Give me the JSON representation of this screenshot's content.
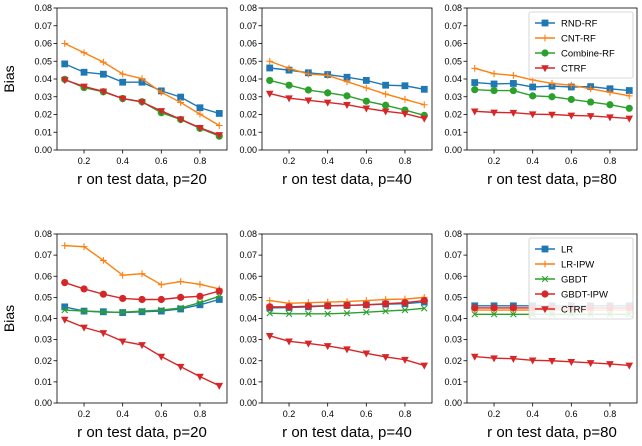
{
  "figure": {
    "colors": {
      "blue": "#1f77b4",
      "orange": "#ff7f0e",
      "green": "#2ca02c",
      "red": "#d62728",
      "axis": "#000000",
      "background": "#ffffff"
    }
  },
  "chart_data": [
    {
      "type": "line",
      "x": [
        0.1,
        0.2,
        0.3,
        0.4,
        0.5,
        0.6,
        0.7,
        0.8,
        0.9
      ],
      "xlabel": "r on test data, p=20",
      "ylabel": "Bias",
      "ylim": [
        0,
        0.08
      ],
      "xticks": [
        "0.2",
        "0.4",
        "0.6",
        "0.8"
      ],
      "yticks": [
        "0.00",
        "0.01",
        "0.02",
        "0.03",
        "0.04",
        "0.05",
        "0.06",
        "0.07",
        "0.08"
      ],
      "series": [
        {
          "name": "RND-RF",
          "color": "#1f77b4",
          "marker": "square",
          "values": [
            0.0485,
            0.0438,
            0.0427,
            0.0382,
            0.0382,
            0.0333,
            0.0298,
            0.0238,
            0.0206
          ]
        },
        {
          "name": "CNT-RF",
          "color": "#ff7f0e",
          "marker": "plus",
          "values": [
            0.06,
            0.0548,
            0.0495,
            0.0428,
            0.0402,
            0.0325,
            0.0268,
            0.0202,
            0.0138
          ]
        },
        {
          "name": "Combine-RF",
          "color": "#2ca02c",
          "marker": "circle",
          "values": [
            0.0398,
            0.0352,
            0.0328,
            0.029,
            0.0272,
            0.021,
            0.0172,
            0.0122,
            0.0078
          ]
        },
        {
          "name": "CTRF",
          "color": "#d62728",
          "marker": "triangle",
          "values": [
            0.0395,
            0.0358,
            0.033,
            0.029,
            0.027,
            0.022,
            0.0173,
            0.0125,
            0.0085
          ]
        }
      ]
    },
    {
      "type": "line",
      "x": [
        0.1,
        0.2,
        0.3,
        0.4,
        0.5,
        0.6,
        0.7,
        0.8,
        0.9
      ],
      "xlabel": "r on test data, p=40",
      "ylim": [
        0,
        0.08
      ],
      "xticks": [
        "0.2",
        "0.4",
        "0.6",
        "0.8"
      ],
      "yticks": [
        "0.00",
        "0.01",
        "0.02",
        "0.03",
        "0.04",
        "0.05",
        "0.06",
        "0.07",
        "0.08"
      ],
      "series": [
        {
          "name": "RND-RF",
          "color": "#1f77b4",
          "marker": "square",
          "values": [
            0.0462,
            0.045,
            0.0435,
            0.0425,
            0.041,
            0.0392,
            0.0365,
            0.0362,
            0.0342
          ]
        },
        {
          "name": "CNT-RF",
          "color": "#ff7f0e",
          "marker": "plus",
          "values": [
            0.05,
            0.046,
            0.0428,
            0.042,
            0.0385,
            0.035,
            0.0315,
            0.0285,
            0.0255
          ]
        },
        {
          "name": "Combine-RF",
          "color": "#2ca02c",
          "marker": "circle",
          "values": [
            0.0392,
            0.0365,
            0.0338,
            0.0322,
            0.0305,
            0.0275,
            0.0252,
            0.0225,
            0.0195
          ]
        },
        {
          "name": "CTRF",
          "color": "#d62728",
          "marker": "triangle",
          "values": [
            0.0318,
            0.0292,
            0.028,
            0.0268,
            0.0255,
            0.0235,
            0.0218,
            0.0205,
            0.0178
          ]
        }
      ]
    },
    {
      "type": "line",
      "x": [
        0.1,
        0.2,
        0.3,
        0.4,
        0.5,
        0.6,
        0.7,
        0.8,
        0.9
      ],
      "xlabel": "r on test data, p=80",
      "ylim": [
        0,
        0.08
      ],
      "xticks": [
        "0.2",
        "0.4",
        "0.6",
        "0.8"
      ],
      "yticks": [
        "0.00",
        "0.01",
        "0.02",
        "0.03",
        "0.04",
        "0.05",
        "0.06",
        "0.07",
        "0.08"
      ],
      "legend": {
        "position": "top-right",
        "entries": [
          "RND-RF",
          "CNT-RF",
          "Combine-RF",
          "CTRF"
        ]
      },
      "series": [
        {
          "name": "RND-RF",
          "color": "#1f77b4",
          "marker": "square",
          "values": [
            0.038,
            0.0372,
            0.0375,
            0.0355,
            0.036,
            0.0355,
            0.0357,
            0.0345,
            0.0335
          ]
        },
        {
          "name": "CNT-RF",
          "color": "#ff7f0e",
          "marker": "plus",
          "values": [
            0.046,
            0.043,
            0.042,
            0.0395,
            0.0375,
            0.0365,
            0.0345,
            0.0325,
            0.0305
          ]
        },
        {
          "name": "Combine-RF",
          "color": "#2ca02c",
          "marker": "circle",
          "values": [
            0.034,
            0.0335,
            0.0335,
            0.0305,
            0.03,
            0.0285,
            0.027,
            0.0255,
            0.0235
          ]
        },
        {
          "name": "CTRF",
          "color": "#d62728",
          "marker": "triangle",
          "values": [
            0.0218,
            0.0212,
            0.021,
            0.0202,
            0.02,
            0.0195,
            0.0192,
            0.0185,
            0.0178
          ]
        }
      ]
    },
    {
      "type": "line",
      "x": [
        0.1,
        0.2,
        0.3,
        0.4,
        0.5,
        0.6,
        0.7,
        0.8,
        0.9
      ],
      "xlabel": "r on test data, p=20",
      "ylabel": "Bias",
      "ylim": [
        0,
        0.08
      ],
      "xticks": [
        "0.2",
        "0.4",
        "0.6",
        "0.8"
      ],
      "yticks": [
        "0.00",
        "0.01",
        "0.02",
        "0.03",
        "0.04",
        "0.05",
        "0.06",
        "0.07",
        "0.08"
      ],
      "series": [
        {
          "name": "LR",
          "color": "#1f77b4",
          "marker": "square",
          "values": [
            0.0455,
            0.0435,
            0.0432,
            0.0428,
            0.0432,
            0.0435,
            0.0445,
            0.0465,
            0.049
          ]
        },
        {
          "name": "LR-IPW",
          "color": "#ff7f0e",
          "marker": "plus",
          "values": [
            0.0745,
            0.074,
            0.0675,
            0.0605,
            0.0612,
            0.056,
            0.0575,
            0.0562,
            0.054
          ]
        },
        {
          "name": "GBDT",
          "color": "#2ca02c",
          "marker": "x",
          "values": [
            0.044,
            0.0435,
            0.043,
            0.043,
            0.0435,
            0.044,
            0.045,
            0.0475,
            0.0505
          ]
        },
        {
          "name": "GBDT-IPW",
          "color": "#d62728",
          "marker": "circle",
          "values": [
            0.057,
            0.054,
            0.0515,
            0.0495,
            0.049,
            0.049,
            0.05,
            0.0505,
            0.053
          ]
        },
        {
          "name": "CTRF",
          "color": "#d62728",
          "marker": "triangle",
          "values": [
            0.0395,
            0.0358,
            0.0332,
            0.0292,
            0.0275,
            0.022,
            0.0172,
            0.0125,
            0.0082
          ]
        }
      ]
    },
    {
      "type": "line",
      "x": [
        0.1,
        0.2,
        0.3,
        0.4,
        0.5,
        0.6,
        0.7,
        0.8,
        0.9
      ],
      "xlabel": "r on test data, p=40",
      "ylim": [
        0,
        0.08
      ],
      "xticks": [
        "0.2",
        "0.4",
        "0.6",
        "0.8"
      ],
      "yticks": [
        "0.00",
        "0.01",
        "0.02",
        "0.03",
        "0.04",
        "0.05",
        "0.06",
        "0.07",
        "0.08"
      ],
      "series": [
        {
          "name": "LR",
          "color": "#1f77b4",
          "marker": "square",
          "values": [
            0.045,
            0.0452,
            0.0455,
            0.046,
            0.0462,
            0.0465,
            0.0468,
            0.047,
            0.0478
          ]
        },
        {
          "name": "LR-IPW",
          "color": "#ff7f0e",
          "marker": "plus",
          "values": [
            0.0485,
            0.0472,
            0.0475,
            0.0478,
            0.048,
            0.0485,
            0.049,
            0.0492,
            0.05
          ]
        },
        {
          "name": "GBDT",
          "color": "#2ca02c",
          "marker": "x",
          "values": [
            0.0425,
            0.0422,
            0.0422,
            0.0422,
            0.0425,
            0.043,
            0.0435,
            0.044,
            0.0448
          ]
        },
        {
          "name": "GBDT-IPW",
          "color": "#d62728",
          "marker": "circle",
          "values": [
            0.0455,
            0.0455,
            0.0458,
            0.046,
            0.0462,
            0.0465,
            0.047,
            0.0475,
            0.0485
          ]
        },
        {
          "name": "CTRF",
          "color": "#d62728",
          "marker": "triangle",
          "values": [
            0.0318,
            0.0292,
            0.0282,
            0.027,
            0.0255,
            0.0235,
            0.0218,
            0.0205,
            0.0178
          ]
        }
      ]
    },
    {
      "type": "line",
      "x": [
        0.1,
        0.2,
        0.3,
        0.4,
        0.5,
        0.6,
        0.7,
        0.8,
        0.9
      ],
      "xlabel": "r on test data, p=80",
      "ylim": [
        0,
        0.08
      ],
      "xticks": [
        "0.2",
        "0.4",
        "0.6",
        "0.8"
      ],
      "yticks": [
        "0.00",
        "0.01",
        "0.02",
        "0.03",
        "0.04",
        "0.05",
        "0.06",
        "0.07",
        "0.08"
      ],
      "legend": {
        "position": "top-right",
        "entries": [
          "LR",
          "LR-IPW",
          "GBDT",
          "GBDT-IPW",
          "CTRF"
        ]
      },
      "series": [
        {
          "name": "LR",
          "color": "#1f77b4",
          "marker": "square",
          "values": [
            0.046,
            0.046,
            0.046,
            0.046,
            0.046,
            0.046,
            0.046,
            0.046,
            0.046
          ]
        },
        {
          "name": "LR-IPW",
          "color": "#ff7f0e",
          "marker": "plus",
          "values": [
            0.044,
            0.044,
            0.044,
            0.044,
            0.044,
            0.044,
            0.044,
            0.044,
            0.044
          ]
        },
        {
          "name": "GBDT",
          "color": "#2ca02c",
          "marker": "x",
          "values": [
            0.042,
            0.042,
            0.042,
            0.042,
            0.042,
            0.042,
            0.042,
            0.042,
            0.042
          ]
        },
        {
          "name": "GBDT-IPW",
          "color": "#d62728",
          "marker": "circle",
          "values": [
            0.045,
            0.045,
            0.045,
            0.045,
            0.045,
            0.045,
            0.045,
            0.045,
            0.045
          ]
        },
        {
          "name": "CTRF",
          "color": "#d62728",
          "marker": "triangle",
          "values": [
            0.022,
            0.0212,
            0.021,
            0.0202,
            0.02,
            0.0195,
            0.019,
            0.0185,
            0.0178
          ]
        }
      ]
    }
  ]
}
